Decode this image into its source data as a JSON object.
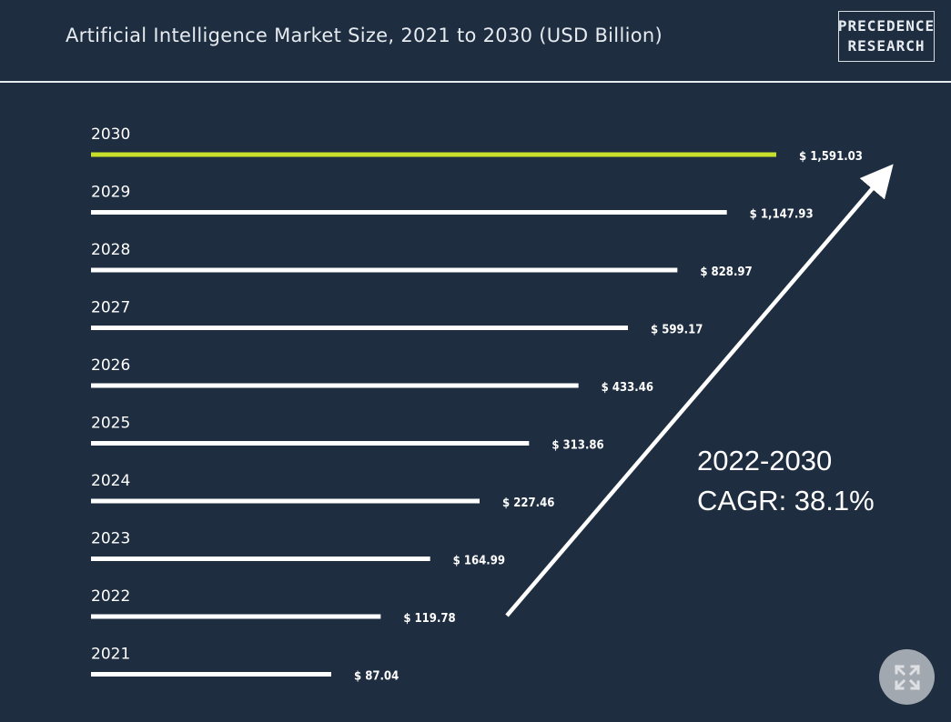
{
  "header": {
    "title": "Artificial Intelligence Market Size, 2021 to 2030 (USD Billion)",
    "logo_line1": "PRECEDENCE",
    "logo_line2": "RESEARCH"
  },
  "annotation": {
    "period": "2022-2030",
    "cagr": "CAGR: 38.1%"
  },
  "colors": {
    "background": "#1e2d40",
    "bar": "#ffffff",
    "highlight_bar": "#c8e02c",
    "text": "#ffffff"
  },
  "chart_data": {
    "type": "bar",
    "orientation": "horizontal",
    "title": "Artificial Intelligence Market Size, 2021 to 2030 (USD Billion)",
    "categories": [
      "2030",
      "2029",
      "2028",
      "2027",
      "2026",
      "2025",
      "2024",
      "2023",
      "2022",
      "2021"
    ],
    "values": [
      1591.03,
      1147.93,
      828.97,
      599.17,
      433.46,
      313.86,
      227.46,
      164.99,
      119.78,
      87.04
    ],
    "value_labels": [
      "$ 1,591.03",
      "$ 1,147.93",
      "$ 828.97",
      "$ 599.17",
      "$ 433.46",
      "$ 313.86",
      "$ 227.46",
      "$ 164.99",
      "$ 119.78",
      "$ 87.04"
    ],
    "highlight_category": "2030",
    "xlabel": "",
    "ylabel": "",
    "grid": false,
    "legend": "none"
  }
}
